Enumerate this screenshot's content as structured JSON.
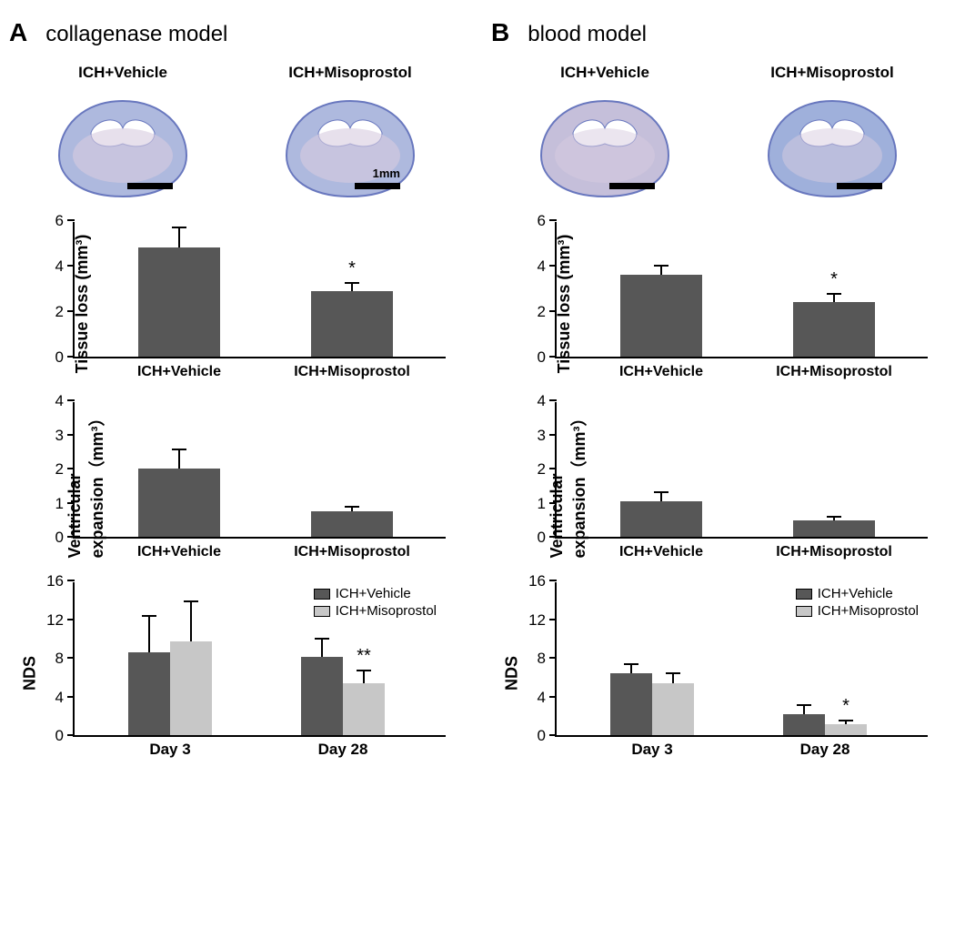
{
  "panels": {
    "A": {
      "letter": "A",
      "title": "collagenase model"
    },
    "B": {
      "letter": "B",
      "title": "blood model"
    }
  },
  "histo": {
    "A": {
      "left": "ICH+Vehicle",
      "right": "ICH+Misoprostol",
      "scale": "1mm"
    },
    "B": {
      "left": "ICH+Vehicle",
      "right": "ICH+Misoprostol"
    }
  },
  "colors": {
    "bar_dark": "#575757",
    "bar_light": "#c7c7c7",
    "brain_fill": "#aeb9de",
    "brain_stroke": "#6877be",
    "brain_inner": "#d7cce0"
  },
  "tissue_loss": {
    "ylabel": "Tissue loss (mm³)",
    "A": {
      "ymax": 6,
      "yticks": [
        0,
        2,
        4,
        6
      ],
      "bars": [
        {
          "label": "ICH+Vehicle",
          "value": 4.8,
          "err": 0.9,
          "color": "#575757",
          "sig": ""
        },
        {
          "label": "ICH+Misoprostol",
          "value": 2.9,
          "err": 0.35,
          "color": "#575757",
          "sig": "*"
        }
      ]
    },
    "B": {
      "ymax": 6,
      "yticks": [
        0,
        2,
        4,
        6
      ],
      "bars": [
        {
          "label": "ICH+Vehicle",
          "value": 3.6,
          "err": 0.4,
          "color": "#575757",
          "sig": ""
        },
        {
          "label": "ICH+Misoprostol",
          "value": 2.4,
          "err": 0.35,
          "color": "#575757",
          "sig": "*"
        }
      ]
    }
  },
  "ventricular": {
    "ylabel": "Ventricular\nexpansion（mm³）",
    "A": {
      "ymax": 4,
      "yticks": [
        0,
        1,
        2,
        3,
        4
      ],
      "bars": [
        {
          "label": "ICH+Vehicle",
          "value": 2.0,
          "err": 0.55,
          "color": "#575757",
          "sig": ""
        },
        {
          "label": "ICH+Misoprostol",
          "value": 0.75,
          "err": 0.12,
          "color": "#575757",
          "sig": ""
        }
      ]
    },
    "B": {
      "ymax": 4,
      "yticks": [
        0,
        1,
        2,
        3,
        4
      ],
      "bars": [
        {
          "label": "ICH+Vehicle",
          "value": 1.05,
          "err": 0.25,
          "color": "#575757",
          "sig": ""
        },
        {
          "label": "ICH+Misoprostol",
          "value": 0.48,
          "err": 0.1,
          "color": "#575757",
          "sig": ""
        }
      ]
    }
  },
  "nds": {
    "ylabel": "NDS",
    "legend": [
      "ICH+Vehicle",
      "ICH+Misoprostol"
    ],
    "A": {
      "ymax": 16,
      "yticks": [
        0,
        4,
        8,
        12,
        16
      ],
      "groups": [
        {
          "label": "Day 3",
          "bars": [
            {
              "value": 8.6,
              "err": 3.7,
              "color": "#575757"
            },
            {
              "value": 9.7,
              "err": 4.1,
              "color": "#c7c7c7"
            }
          ]
        },
        {
          "label": "Day 28",
          "bars": [
            {
              "value": 8.1,
              "err": 1.9,
              "color": "#575757"
            },
            {
              "value": 5.4,
              "err": 1.3,
              "color": "#c7c7c7",
              "sig": "**"
            }
          ]
        }
      ]
    },
    "B": {
      "ymax": 16,
      "yticks": [
        0,
        4,
        8,
        12,
        16
      ],
      "groups": [
        {
          "label": "Day 3",
          "bars": [
            {
              "value": 6.4,
              "err": 0.9,
              "color": "#575757"
            },
            {
              "value": 5.4,
              "err": 1.0,
              "color": "#c7c7c7"
            }
          ]
        },
        {
          "label": "Day 28",
          "bars": [
            {
              "value": 2.2,
              "err": 0.9,
              "color": "#575757"
            },
            {
              "value": 1.1,
              "err": 0.45,
              "color": "#c7c7c7",
              "sig": "*"
            }
          ]
        }
      ]
    }
  }
}
